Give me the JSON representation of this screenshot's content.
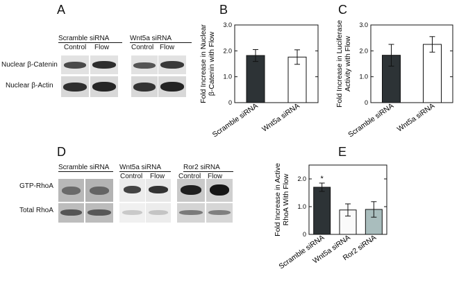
{
  "panels": {
    "A": {
      "letter": "A",
      "groups": [
        "Scramble siRNA",
        "Wnt5a siRNA"
      ],
      "lanes": [
        "Control",
        "Flow"
      ],
      "rows": [
        "Nuclear β-Catenin",
        "Nuclear β-Actin"
      ]
    },
    "D": {
      "letter": "D",
      "groups": [
        "Scramble siRNA",
        "Wnt5a siRNA",
        "Ror2 siRNA"
      ],
      "lanes": [
        "Control",
        "Flow"
      ],
      "rows": [
        "GTP-RhoA",
        "Total RhoA"
      ]
    }
  },
  "chart_data": [
    {
      "panel": "B",
      "type": "bar",
      "categories": [
        "Scramble siRNA",
        "Wnt5a siRNA"
      ],
      "values": [
        1.82,
        1.76
      ],
      "errors": [
        0.23,
        0.28
      ],
      "colors": [
        "#2d3336",
        "#ffffff"
      ],
      "ylabel_lines": [
        "Fold Increase in Nuclear",
        "β-Catenin with Flow"
      ],
      "ylim": [
        0,
        3.0
      ],
      "yticks": [
        "0",
        "1.0",
        "2.0",
        "3.0"
      ],
      "annotations": []
    },
    {
      "panel": "C",
      "type": "bar",
      "categories": [
        "Scramble siRNA",
        "Wnt5a siRNA"
      ],
      "values": [
        1.83,
        2.25
      ],
      "errors": [
        0.42,
        0.3
      ],
      "colors": [
        "#2d3336",
        "#ffffff"
      ],
      "ylabel_lines": [
        "Fold Increase in Luciferase",
        "Activity with Flow"
      ],
      "ylim": [
        0,
        3.0
      ],
      "yticks": [
        "0",
        "1.0",
        "2.0",
        "3.0"
      ],
      "annotations": []
    },
    {
      "panel": "E",
      "type": "bar",
      "categories": [
        "Scramble siRNA",
        "Wnt5a siRNA",
        "Ror2 siRNA"
      ],
      "values": [
        1.7,
        0.88,
        0.9
      ],
      "errors": [
        0.15,
        0.22,
        0.28
      ],
      "colors": [
        "#2d3336",
        "#fafafa",
        "#a9bdbd"
      ],
      "ylabel_lines": [
        "Fold Increase in Active",
        "RhoA With Flow"
      ],
      "ylim": [
        0,
        2.5
      ],
      "yticks": [
        "0",
        "1.0",
        "2.0"
      ],
      "annotations": [
        "*"
      ]
    }
  ]
}
